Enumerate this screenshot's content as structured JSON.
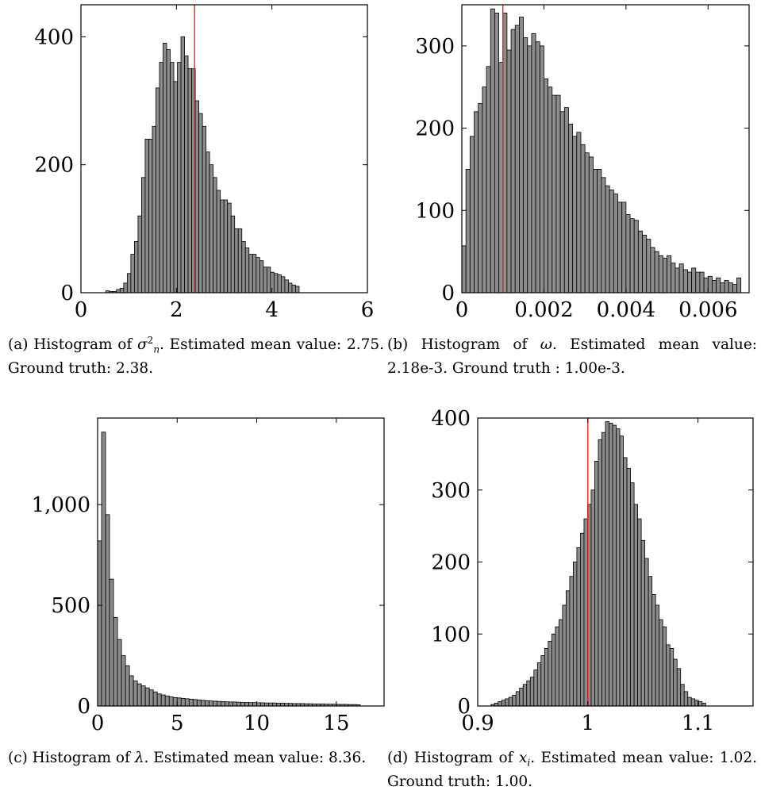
{
  "chart_data": [
    {
      "type": "bar",
      "panel": "a",
      "xlim": [
        0,
        6
      ],
      "ylim": [
        0,
        450
      ],
      "xticks": [
        0,
        2,
        4,
        6
      ],
      "xtick_labels": [
        "0",
        "2",
        "4",
        "6"
      ],
      "yticks": [
        0,
        200,
        400
      ],
      "ytick_labels": [
        "0",
        "200",
        "400"
      ],
      "bin_start": 0.52,
      "bin_width": 0.075,
      "values": [
        3,
        2,
        2,
        5,
        7,
        15,
        30,
        60,
        80,
        120,
        180,
        240,
        240,
        260,
        320,
        360,
        390,
        380,
        360,
        330,
        360,
        400,
        370,
        350,
        350,
        300,
        280,
        260,
        220,
        200,
        180,
        160,
        145,
        145,
        140,
        120,
        100,
        100,
        80,
        70,
        60,
        60,
        55,
        50,
        40,
        40,
        32,
        30,
        28,
        25,
        20,
        15,
        12,
        10
      ],
      "reference_line": 2.38,
      "caption": {
        "prefix": "(a) Histogram of ",
        "symbol": "σ",
        "sup": "2",
        "sub": "n",
        "suffix": ". Estimated mean value: 2.75. Ground truth: 2.38."
      }
    },
    {
      "type": "bar",
      "panel": "b",
      "xlim": [
        0,
        0.007
      ],
      "ylim": [
        0,
        350
      ],
      "xticks": [
        0,
        0.002,
        0.004,
        0.006
      ],
      "xtick_labels": [
        "0",
        "0.002",
        "0.004",
        "0.006"
      ],
      "yticks": [
        0,
        100,
        200,
        300
      ],
      "ytick_labels": [
        "0",
        "100",
        "200",
        "300"
      ],
      "bin_start": 0.0,
      "bin_width": 0.0001,
      "values": [
        57,
        150,
        190,
        220,
        230,
        250,
        275,
        345,
        340,
        280,
        340,
        295,
        320,
        325,
        335,
        310,
        300,
        315,
        305,
        300,
        260,
        250,
        240,
        240,
        220,
        225,
        205,
        190,
        195,
        180,
        170,
        165,
        150,
        150,
        140,
        130,
        125,
        120,
        110,
        110,
        95,
        90,
        88,
        75,
        70,
        65,
        55,
        50,
        45,
        42,
        45,
        36,
        30,
        35,
        28,
        25,
        30,
        25,
        25,
        18,
        20,
        15,
        18,
        12,
        15,
        12,
        10,
        18
      ],
      "reference_line": 0.001,
      "caption": {
        "prefix": "(b) Histogram of ",
        "symbol": "ω",
        "suffix": ". Estimated mean value: 2.18e-3. Ground truth : 1.00e-3."
      }
    },
    {
      "type": "bar",
      "panel": "c",
      "xlim": [
        0,
        18
      ],
      "ylim": [
        0,
        1430
      ],
      "xticks": [
        0,
        5,
        10,
        15
      ],
      "xtick_labels": [
        "0",
        "5",
        "10",
        "15"
      ],
      "yticks": [
        0,
        500,
        1000
      ],
      "ytick_labels": [
        "0",
        "500",
        "1,000"
      ],
      "bin_start": 0.0,
      "bin_width": 0.25,
      "values": [
        820,
        1360,
        950,
        630,
        440,
        330,
        250,
        200,
        150,
        125,
        110,
        100,
        90,
        80,
        70,
        60,
        55,
        50,
        45,
        42,
        40,
        38,
        36,
        34,
        32,
        30,
        28,
        26,
        25,
        24,
        23,
        22,
        21,
        20,
        20,
        19,
        18,
        18,
        17,
        17,
        16,
        16,
        15,
        15,
        15,
        14,
        14,
        13,
        13,
        12,
        12,
        12,
        11,
        11,
        10,
        10,
        10,
        9,
        9,
        9,
        8,
        8,
        8,
        7,
        7,
        6
      ],
      "reference_line": null,
      "caption": {
        "prefix": "(c) Histogram of ",
        "symbol": "λ",
        "suffix": ". Estimated mean value: 8.36."
      }
    },
    {
      "type": "bar",
      "panel": "d",
      "xlim": [
        0.9,
        1.15
      ],
      "ylim": [
        0,
        400
      ],
      "xticks": [
        0.9,
        1.0,
        1.1
      ],
      "xtick_labels": [
        "0.9",
        "1",
        "1.1"
      ],
      "yticks": [
        0,
        100,
        200,
        300,
        400
      ],
      "ytick_labels": [
        "0",
        "100",
        "200",
        "300",
        "400"
      ],
      "bin_start": 0.912,
      "bin_width": 0.00325,
      "values": [
        2,
        4,
        6,
        8,
        10,
        12,
        15,
        20,
        25,
        30,
        35,
        40,
        50,
        60,
        70,
        80,
        90,
        100,
        110,
        120,
        140,
        160,
        180,
        200,
        220,
        240,
        260,
        280,
        300,
        340,
        370,
        380,
        395,
        393,
        390,
        385,
        375,
        345,
        330,
        310,
        280,
        260,
        230,
        205,
        180,
        155,
        140,
        120,
        110,
        85,
        80,
        65,
        52,
        30,
        20,
        12,
        10,
        8,
        6,
        4
      ],
      "reference_line": 1.0,
      "caption": {
        "prefix": "(d) Histogram of ",
        "symbol": "x",
        "sub": "i",
        "suffix": ". Estimated mean value: 1.02. Ground truth: 1.00."
      }
    }
  ],
  "colors": {
    "bar_fill": "#8c8c8c",
    "bar_stroke": "#000000",
    "reference_line": "#e8281e",
    "axis": "#000000"
  }
}
